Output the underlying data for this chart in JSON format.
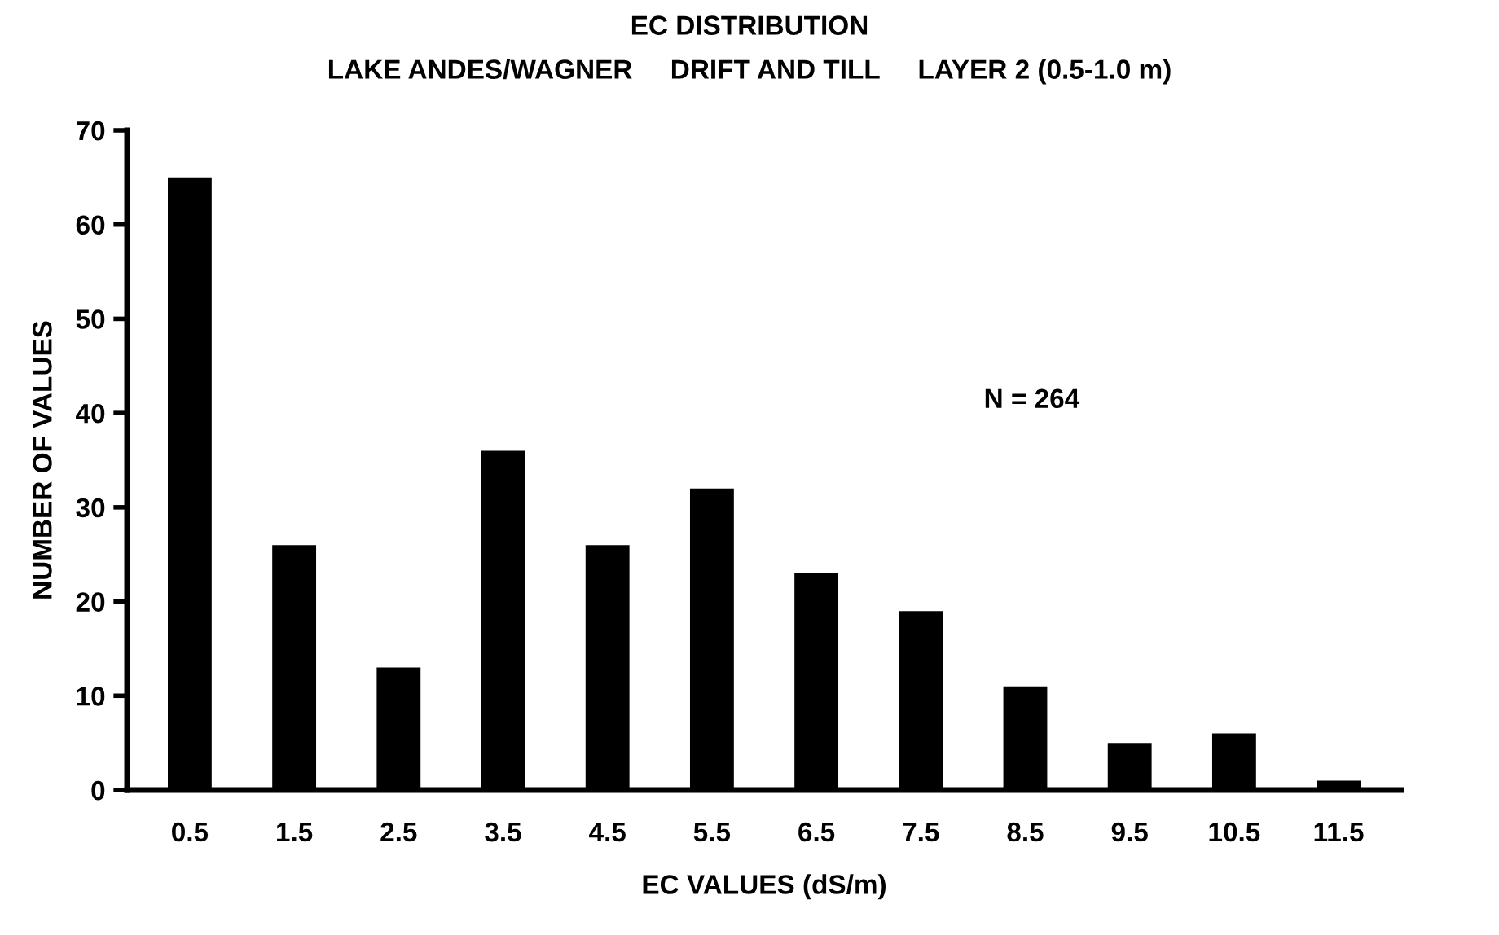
{
  "chart_data": {
    "type": "bar",
    "title": "EC DISTRIBUTION",
    "subtitle": "LAKE ANDES/WAGNER     DRIFT AND TILL     LAYER 2 (0.5-1.0 m)",
    "xlabel": "EC VALUES (dS/m)",
    "ylabel": "NUMBER OF VALUES",
    "categories": [
      "0.5",
      "1.5",
      "2.5",
      "3.5",
      "4.5",
      "5.5",
      "6.5",
      "7.5",
      "8.5",
      "9.5",
      "10.5",
      "11.5"
    ],
    "values": [
      65,
      26,
      13,
      36,
      26,
      32,
      23,
      19,
      11,
      5,
      6,
      1
    ],
    "color": "#000000",
    "ylim": [
      0,
      70
    ],
    "yticks": [
      0,
      10,
      20,
      30,
      40,
      50,
      60,
      70
    ],
    "grid": false,
    "annotations": [
      "N = 264"
    ]
  }
}
